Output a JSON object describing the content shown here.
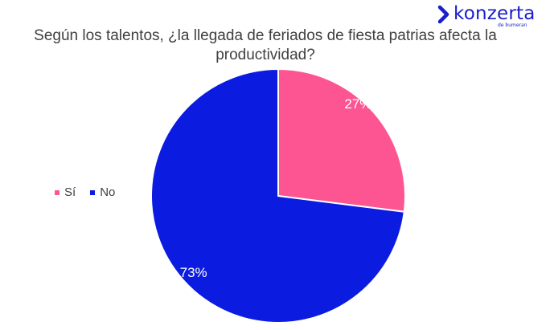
{
  "brand": {
    "name": "konzerta",
    "tagline": "de bumeran",
    "color": "#1a1ecb"
  },
  "chart_data": {
    "type": "pie",
    "title": "Según los talentos, ¿la llegada de feriados de fiesta patrias afecta la productividad?",
    "categories": [
      "Sí",
      "No"
    ],
    "values": [
      27,
      73
    ],
    "labels": [
      "27%",
      "73%"
    ],
    "colors": [
      "#fd5592",
      "#0b1ce0"
    ],
    "legend_position": "left"
  }
}
